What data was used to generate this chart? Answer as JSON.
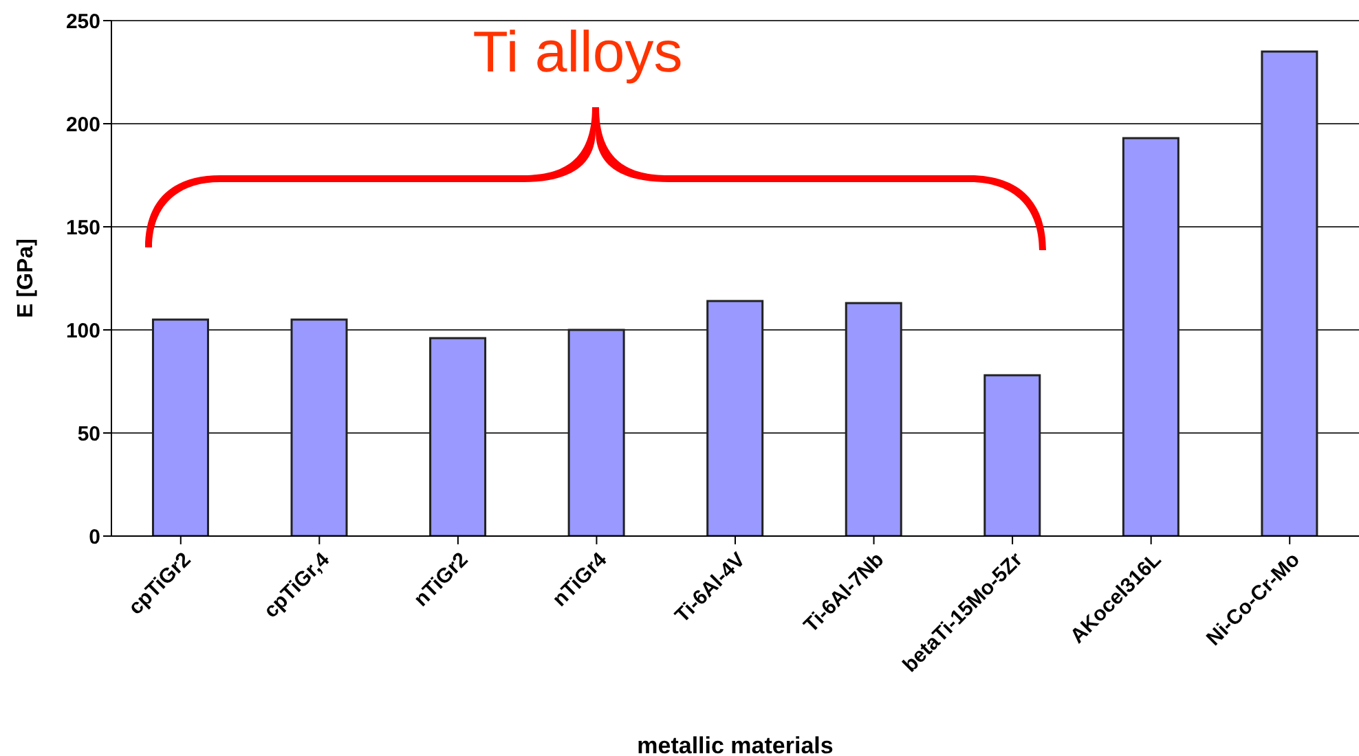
{
  "chart_data": {
    "type": "bar",
    "categories": [
      "cpTiGr2",
      "cpTiGr,4",
      "nTiGr2",
      "nTiGr4",
      "Ti-6Al-4V",
      "Ti-6Al-7Nb",
      "betaTi-15Mo-5Zr",
      "AKocel316L",
      "Ni-Co-Cr-Mo"
    ],
    "values": [
      105,
      105,
      96,
      100,
      114,
      113,
      78,
      193,
      235
    ],
    "color": "#9999ff",
    "xlabel": "metallic materials",
    "ylabel": "E [GPa]",
    "ylim": [
      0,
      250
    ],
    "yticks": [
      0,
      50,
      100,
      150,
      200,
      250
    ],
    "grid": "y",
    "annotations": [
      "Ti alloys"
    ]
  }
}
